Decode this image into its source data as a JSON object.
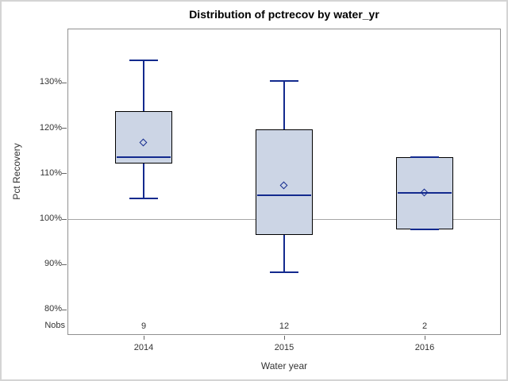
{
  "title": "Distribution of pctrecov by water_yr",
  "y_axis": {
    "label": "Pct Recovery",
    "tick_labels": [
      "130%",
      "120%",
      "110%",
      "100%",
      "90%",
      "80%"
    ],
    "tick_values": [
      130,
      120,
      110,
      100,
      90,
      80
    ]
  },
  "x_axis": {
    "label": "Water year",
    "categories": [
      "2014",
      "2015",
      "2016"
    ]
  },
  "nobs": {
    "label": "Nobs",
    "values": [
      "9",
      "12",
      "2"
    ]
  },
  "chart_data": {
    "type": "boxplot",
    "title": "Distribution of pctrecov by water_yr",
    "xlabel": "Water year",
    "ylabel": "Pct Recovery",
    "categories": [
      "2014",
      "2015",
      "2016"
    ],
    "ylim": [
      74,
      142
    ],
    "y_tick_values": [
      80,
      90,
      100,
      110,
      120,
      130
    ],
    "reference_line": 100,
    "legend": "none",
    "series": [
      {
        "category": "2014",
        "nobs": "9",
        "min": 104.5,
        "q1": 112.2,
        "median": 113.6,
        "q3": 123.8,
        "max": 135.0,
        "mean": 116.8
      },
      {
        "category": "2015",
        "nobs": "12",
        "min": 88.3,
        "q1": 96.5,
        "median": 105.2,
        "q3": 119.8,
        "max": 130.5,
        "mean": 107.4
      },
      {
        "category": "2016",
        "nobs": "2",
        "min": 97.7,
        "q1": 97.7,
        "median": 105.8,
        "q3": 113.6,
        "max": 113.6,
        "mean": 105.8
      }
    ]
  },
  "colors": {
    "box_fill": "#ccd5e5",
    "box_border": "#000000",
    "line_navy": "#132a8e",
    "reference_line": "#a6a6a6",
    "plot_border": "#909090",
    "outer_border": "#d4d4d4",
    "background": "#ffffff",
    "text": "#333333"
  }
}
